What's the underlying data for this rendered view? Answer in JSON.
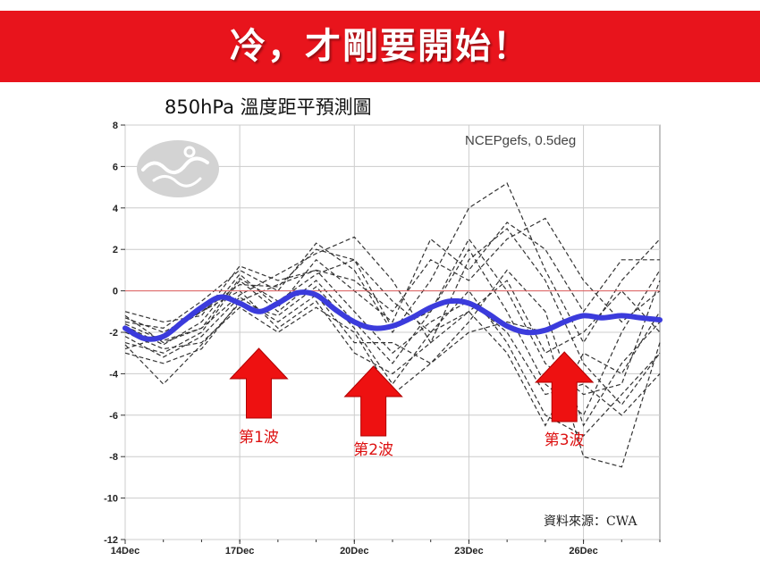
{
  "banner": {
    "title": "冷，才剛要開始！"
  },
  "chart_title": "850hPa 溫度距平預測圖",
  "model_label": "NCEPgefs, 0.5deg",
  "source_label": "資料來源：CWA",
  "colors": {
    "banner": "#e8141c",
    "mean_line": "#3b3bdc",
    "ensemble": "#333333",
    "zero_line": "#e06060",
    "arrow": "#ee1111"
  },
  "icons": {
    "logo": "cwa-wind-logo-icon",
    "arrow": "up-arrow-icon"
  },
  "chart_data": {
    "type": "line",
    "title": "850hPa 溫度距平預測圖",
    "xlabel": "",
    "ylabel": "",
    "x_ticks": [
      "14Dec",
      "17Dec",
      "20Dec",
      "23Dec",
      "26Dec"
    ],
    "xlim": [
      0,
      14
    ],
    "ylim": [
      -12,
      8
    ],
    "y_ticks": [
      8,
      6,
      4,
      2,
      0,
      -2,
      -4,
      -6,
      -8,
      -10,
      -12
    ],
    "grid": true,
    "reference_line": 0,
    "series": [
      {
        "role": "ensemble-mean",
        "x": [
          0,
          0.5,
          1,
          1.5,
          2,
          2.5,
          3,
          3.5,
          4,
          4.5,
          5,
          5.5,
          6,
          6.5,
          7,
          7.5,
          8,
          8.5,
          9,
          9.5,
          10,
          10.5,
          11,
          11.5,
          12,
          12.5,
          13,
          13.5,
          14
        ],
        "values": [
          -1.8,
          -2.3,
          -2.2,
          -1.5,
          -0.8,
          -0.3,
          -0.6,
          -1.0,
          -0.6,
          -0.1,
          -0.2,
          -0.9,
          -1.5,
          -1.8,
          -1.7,
          -1.3,
          -0.8,
          -0.5,
          -0.6,
          -1.1,
          -1.7,
          -2.0,
          -1.9,
          -1.5,
          -1.2,
          -1.3,
          -1.2,
          -1.3,
          -1.4
        ]
      }
    ],
    "ensemble_x": [
      0,
      1,
      2,
      3,
      4,
      5,
      6,
      7,
      8,
      9,
      10,
      11,
      12,
      13,
      14
    ],
    "ensemble_members": [
      [
        -1.2,
        -2.5,
        -1.8,
        -0.2,
        0.8,
        1.8,
        2.6,
        0.5,
        -2.5,
        1.5,
        3.0,
        0.5,
        -3.5,
        -5.5,
        -3.0
      ],
      [
        -2.5,
        -3.0,
        -2.0,
        0.5,
        -1.0,
        0.5,
        -1.5,
        -3.5,
        -1.0,
        2.0,
        -1.0,
        -4.5,
        -6.0,
        -2.0,
        1.0
      ],
      [
        -1.5,
        -1.8,
        -0.5,
        1.0,
        0.0,
        2.3,
        1.0,
        -2.0,
        0.5,
        4.0,
        5.2,
        1.0,
        -2.5,
        0.5,
        2.5
      ],
      [
        -2.8,
        -2.2,
        -1.0,
        0.0,
        -1.8,
        -0.5,
        -3.0,
        -4.0,
        -2.5,
        -1.0,
        -3.0,
        -6.5,
        -3.0,
        -4.0,
        -1.0
      ],
      [
        -1.0,
        -1.5,
        -1.2,
        1.2,
        0.5,
        1.0,
        0.5,
        -1.0,
        1.5,
        0.5,
        2.5,
        3.5,
        0.5,
        -1.5,
        0.0
      ],
      [
        -2.0,
        -2.8,
        -2.5,
        -0.8,
        -2.0,
        -0.8,
        -2.0,
        -5.0,
        -3.5,
        -2.0,
        -1.5,
        -2.0,
        -8.0,
        -8.5,
        -2.5
      ],
      [
        -1.7,
        -2.6,
        -1.5,
        0.8,
        -0.8,
        1.5,
        0.0,
        -1.5,
        2.5,
        1.0,
        3.3,
        2.0,
        -1.0,
        1.5,
        1.5
      ],
      [
        -3.0,
        -3.5,
        -2.8,
        -0.5,
        0.3,
        1.0,
        -1.0,
        -3.0,
        -1.5,
        -0.5,
        -2.0,
        -5.0,
        -4.5,
        -6.0,
        -4.0
      ],
      [
        -1.3,
        -2.0,
        -1.0,
        0.3,
        0.2,
        2.0,
        1.5,
        -0.5,
        -2.0,
        -1.0,
        0.5,
        -3.0,
        -2.0,
        0.0,
        -2.0
      ],
      [
        -2.2,
        -3.2,
        -2.2,
        -0.3,
        -1.5,
        -0.2,
        -2.5,
        -2.5,
        -3.5,
        -1.5,
        1.0,
        -1.0,
        -6.5,
        -3.5,
        -1.5
      ],
      [
        -1.6,
        -2.4,
        -1.8,
        0.6,
        -0.5,
        0.8,
        1.5,
        -1.8,
        -1.0,
        2.5,
        0.0,
        -3.5,
        -5.0,
        -4.5,
        0.5
      ],
      [
        -2.6,
        -4.5,
        -2.6,
        -0.6,
        -1.2,
        0.2,
        -1.8,
        -4.5,
        -2.0,
        0.0,
        -2.5,
        -6.0,
        -7.0,
        -5.0,
        -3.0
      ]
    ]
  },
  "annotations": [
    {
      "label": "第1波",
      "x": 3.5
    },
    {
      "label": "第2波",
      "x": 6.5
    },
    {
      "label": "第3波",
      "x": 11.5
    }
  ]
}
